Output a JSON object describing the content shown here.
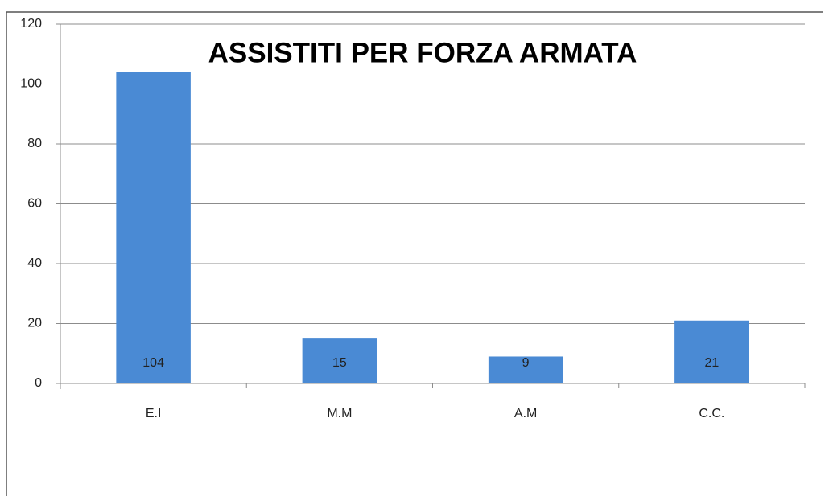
{
  "chart_data": {
    "type": "bar",
    "title": "ASSISTITI PER FORZA ARMATA",
    "categories": [
      "E.I",
      "M.M",
      "A.M",
      "C.C."
    ],
    "values": [
      104,
      15,
      9,
      21
    ],
    "color": "#4a8ad4",
    "ylim": [
      0,
      120
    ],
    "yticks": [
      0,
      20,
      40,
      60,
      80,
      100,
      120
    ],
    "grid": true
  }
}
